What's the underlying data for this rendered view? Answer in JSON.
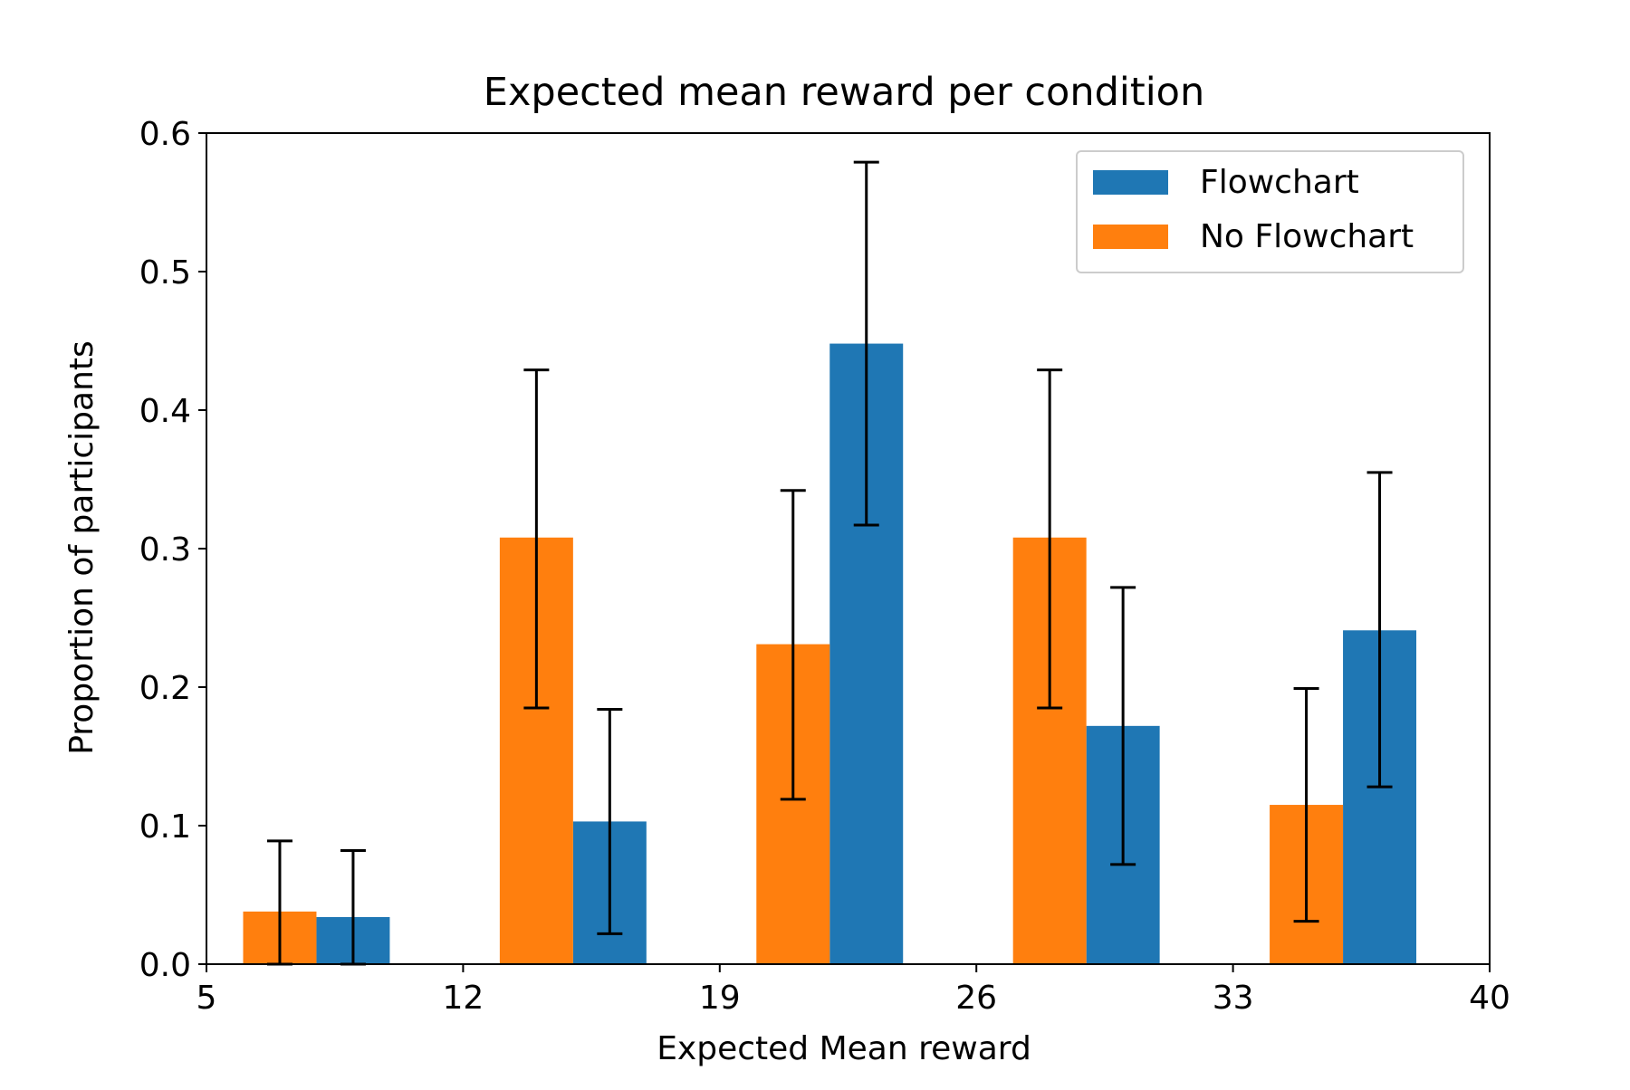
{
  "chart_data": {
    "type": "bar",
    "title": "Expected mean reward per condition",
    "xlabel": "Expected Mean reward",
    "ylabel": "Proportion of participants",
    "xlim": [
      5,
      40
    ],
    "ylim": [
      0,
      0.6
    ],
    "xticks": [
      5,
      12,
      19,
      26,
      33,
      40
    ],
    "yticks": [
      0.0,
      0.1,
      0.2,
      0.3,
      0.4,
      0.5,
      0.6
    ],
    "xtick_labels": [
      "5",
      "12",
      "19",
      "26",
      "33",
      "40"
    ],
    "ytick_labels": [
      "0.0",
      "0.1",
      "0.2",
      "0.3",
      "0.4",
      "0.5",
      "0.6"
    ],
    "grid": false,
    "legend_position": "top-right",
    "bar_width": 2,
    "series": [
      {
        "name": "Flowchart",
        "color": "#1f77b4",
        "x": [
          9,
          16,
          23,
          30,
          37
        ],
        "values": [
          0.034,
          0.103,
          0.448,
          0.172,
          0.241
        ],
        "error_low": [
          0.0,
          0.022,
          0.317,
          0.072,
          0.128
        ],
        "error_high": [
          0.082,
          0.184,
          0.579,
          0.272,
          0.355
        ]
      },
      {
        "name": "No Flowchart",
        "color": "#ff7f0e",
        "x": [
          7,
          14,
          21,
          28,
          35
        ],
        "values": [
          0.038,
          0.308,
          0.231,
          0.308,
          0.115
        ],
        "error_low": [
          0.0,
          0.185,
          0.119,
          0.185,
          0.031
        ],
        "error_high": [
          0.089,
          0.429,
          0.342,
          0.429,
          0.199
        ]
      }
    ],
    "legend_order": [
      "Flowchart",
      "No Flowchart"
    ]
  }
}
